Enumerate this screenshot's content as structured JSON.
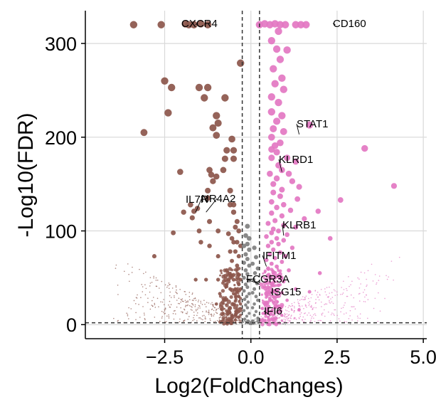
{
  "chart_data": {
    "type": "scatter",
    "title": "",
    "xlabel": "Log2(FoldChanges)",
    "ylabel": "-Log10(FDR)",
    "xlim": [
      -4.8,
      5.1
    ],
    "ylim": [
      -15,
      335
    ],
    "x_ticks": [
      -2.5,
      0.0,
      2.5,
      5.0
    ],
    "x_tick_labels": [
      "−2.5",
      "0.0",
      "2.5",
      "5.0"
    ],
    "y_ticks": [
      0,
      100,
      200,
      300
    ],
    "y_tick_labels": [
      "0",
      "100",
      "200",
      "300"
    ],
    "grid": true,
    "thresholds": {
      "log2fc": [
        -0.25,
        0.25
      ],
      "fdr_line": 2
    },
    "colors": {
      "down": "#8c564b",
      "up": "#e377c2",
      "ns": "#7f7f7f",
      "grid": "#d9d9d9",
      "threshold": "#333333"
    },
    "series": [
      {
        "key": "down",
        "points": [
          [
            -3.4,
            320
          ],
          [
            -2.6,
            320
          ],
          [
            -1.9,
            321
          ],
          [
            -1.8,
            320
          ],
          [
            -1.65,
            320
          ],
          [
            -1.45,
            321
          ],
          [
            -1.25,
            320
          ],
          [
            -0.3,
            279
          ],
          [
            -2.5,
            260
          ],
          [
            -2.3,
            253
          ],
          [
            -1.5,
            253
          ],
          [
            -1.25,
            253
          ],
          [
            -1.35,
            242
          ],
          [
            -0.75,
            242
          ],
          [
            -2.4,
            226
          ],
          [
            -1.0,
            223
          ],
          [
            -0.95,
            215
          ],
          [
            -3.1,
            205
          ],
          [
            -1.1,
            210
          ],
          [
            -1.0,
            202
          ],
          [
            -0.55,
            198
          ],
          [
            -0.7,
            186
          ],
          [
            -0.5,
            186
          ],
          [
            -0.5,
            177
          ],
          [
            -0.75,
            177
          ],
          [
            -0.8,
            165
          ],
          [
            -1.2,
            165
          ],
          [
            -2.05,
            163
          ],
          [
            -1.15,
            160
          ],
          [
            -1.0,
            158
          ],
          [
            -1.1,
            153
          ],
          [
            -1.25,
            143
          ],
          [
            -0.6,
            143
          ],
          [
            -1.75,
            128
          ],
          [
            -1.55,
            124
          ],
          [
            -1.25,
            135
          ],
          [
            -0.6,
            128
          ],
          [
            -0.5,
            128
          ],
          [
            -1.65,
            121
          ],
          [
            -1.95,
            120
          ],
          [
            -0.5,
            120
          ],
          [
            -1.7,
            114
          ],
          [
            -1.2,
            110
          ],
          [
            -0.4,
            110
          ],
          [
            -0.45,
            104
          ],
          [
            -1.5,
            100
          ],
          [
            -0.95,
            100
          ],
          [
            -0.35,
            100
          ],
          [
            -2.25,
            98
          ],
          [
            -0.65,
            97
          ],
          [
            -0.55,
            92
          ],
          [
            -1.45,
            88
          ],
          [
            -0.5,
            88
          ],
          [
            -0.4,
            88
          ],
          [
            -1.2,
            84
          ],
          [
            -0.3,
            84
          ],
          [
            -0.6,
            78
          ],
          [
            -0.45,
            78
          ],
          [
            -2.8,
            73
          ],
          [
            -0.95,
            73
          ],
          [
            -0.35,
            73
          ],
          [
            -0.55,
            68
          ],
          [
            -0.4,
            63
          ],
          [
            -0.7,
            58
          ],
          [
            -0.5,
            53
          ],
          [
            -0.35,
            53
          ],
          [
            -1.6,
            48
          ],
          [
            -1.3,
            48
          ],
          [
            -0.95,
            48
          ],
          [
            -0.65,
            48
          ],
          [
            -0.5,
            48
          ],
          [
            -0.3,
            48
          ],
          [
            -0.7,
            43
          ],
          [
            -0.35,
            43
          ],
          [
            -0.6,
            38
          ],
          [
            -0.45,
            38
          ],
          [
            -0.3,
            38
          ],
          [
            -0.9,
            33
          ],
          [
            -0.5,
            33
          ],
          [
            -0.35,
            30
          ],
          [
            -0.7,
            27
          ],
          [
            -0.45,
            25
          ],
          [
            -1.0,
            22
          ],
          [
            -0.3,
            22
          ],
          [
            -0.6,
            18
          ],
          [
            -0.4,
            15
          ],
          [
            -0.8,
            12
          ],
          [
            -0.55,
            10
          ],
          [
            -0.35,
            8
          ],
          [
            -0.45,
            5
          ]
        ]
      },
      {
        "key": "up",
        "points": [
          [
            0.25,
            320
          ],
          [
            0.4,
            321
          ],
          [
            0.55,
            320
          ],
          [
            0.7,
            321
          ],
          [
            0.85,
            320
          ],
          [
            1.0,
            320
          ],
          [
            1.3,
            320
          ],
          [
            1.45,
            320
          ],
          [
            1.6,
            320
          ],
          [
            0.8,
            313
          ],
          [
            0.6,
            303
          ],
          [
            0.75,
            294
          ],
          [
            1.05,
            293
          ],
          [
            0.85,
            283
          ],
          [
            0.65,
            273
          ],
          [
            0.9,
            263
          ],
          [
            0.7,
            257
          ],
          [
            0.95,
            251
          ],
          [
            0.6,
            243
          ],
          [
            0.8,
            237
          ],
          [
            0.6,
            227
          ],
          [
            0.9,
            223
          ],
          [
            0.75,
            217
          ],
          [
            1.7,
            213
          ],
          [
            0.65,
            209
          ],
          [
            0.95,
            206
          ],
          [
            0.6,
            200
          ],
          [
            0.85,
            194
          ],
          [
            0.7,
            191
          ],
          [
            0.6,
            187
          ],
          [
            0.75,
            184
          ],
          [
            0.6,
            178
          ],
          [
            1.05,
            178
          ],
          [
            1.3,
            174
          ],
          [
            0.8,
            170
          ],
          [
            0.9,
            165
          ],
          [
            1.1,
            161
          ],
          [
            0.55,
            161
          ],
          [
            0.75,
            156
          ],
          [
            1.2,
            153
          ],
          [
            0.65,
            150
          ],
          [
            1.4,
            147
          ],
          [
            0.9,
            144
          ],
          [
            0.65,
            141
          ],
          [
            0.85,
            137
          ],
          [
            1.35,
            134
          ],
          [
            0.6,
            131
          ],
          [
            0.95,
            128
          ],
          [
            0.75,
            125
          ],
          [
            1.15,
            122
          ],
          [
            0.6,
            119
          ],
          [
            0.9,
            116
          ],
          [
            1.55,
            113
          ],
          [
            0.7,
            111
          ],
          [
            0.5,
            108
          ],
          [
            0.95,
            106
          ],
          [
            1.3,
            104
          ],
          [
            0.65,
            102
          ],
          [
            0.8,
            100
          ],
          [
            0.6,
            98
          ],
          [
            1.05,
            96
          ],
          [
            0.45,
            94
          ],
          [
            0.75,
            92
          ],
          [
            0.95,
            90
          ],
          [
            0.6,
            88
          ],
          [
            0.8,
            86
          ],
          [
            0.5,
            84
          ],
          [
            1.2,
            82
          ],
          [
            0.65,
            80
          ],
          [
            0.85,
            77
          ],
          [
            0.55,
            75
          ],
          [
            1.0,
            73
          ],
          [
            0.7,
            71
          ],
          [
            0.45,
            69
          ],
          [
            0.9,
            67
          ],
          [
            0.6,
            65
          ],
          [
            0.75,
            62
          ],
          [
            0.5,
            60
          ],
          [
            1.1,
            58
          ],
          [
            0.65,
            56
          ],
          [
            0.85,
            54
          ],
          [
            0.55,
            52
          ],
          [
            0.7,
            50
          ],
          [
            0.45,
            48
          ],
          [
            0.95,
            46
          ],
          [
            0.6,
            44
          ],
          [
            0.8,
            42
          ],
          [
            0.5,
            40
          ],
          [
            1.3,
            38
          ],
          [
            0.65,
            36
          ],
          [
            0.9,
            34
          ],
          [
            0.45,
            32
          ],
          [
            0.75,
            30
          ],
          [
            0.55,
            28
          ],
          [
            1.05,
            26
          ],
          [
            0.65,
            24
          ],
          [
            0.4,
            22
          ],
          [
            0.8,
            20
          ],
          [
            0.5,
            18
          ],
          [
            1.4,
            16
          ],
          [
            0.6,
            14
          ],
          [
            0.35,
            12
          ],
          [
            0.9,
            10
          ],
          [
            0.5,
            8
          ],
          [
            0.7,
            6
          ],
          [
            0.4,
            4
          ],
          [
            2.6,
            133
          ],
          [
            2.3,
            92
          ],
          [
            1.95,
            121
          ],
          [
            3.3,
            188
          ],
          [
            4.15,
            148
          ],
          [
            2.0,
            55
          ],
          [
            1.7,
            35
          ]
        ]
      },
      {
        "key": "ns",
        "points": [
          [
            -0.1,
            105
          ],
          [
            -0.15,
            95
          ],
          [
            -0.05,
            92
          ],
          [
            -0.1,
            86
          ],
          [
            -0.2,
            84
          ],
          [
            -0.05,
            80
          ],
          [
            -0.15,
            75
          ],
          [
            -0.1,
            70
          ],
          [
            -0.2,
            66
          ],
          [
            -0.05,
            63
          ],
          [
            -0.15,
            58
          ],
          [
            -0.1,
            54
          ],
          [
            -0.2,
            50
          ],
          [
            -0.05,
            47
          ],
          [
            -0.15,
            43
          ],
          [
            -0.1,
            40
          ],
          [
            -0.2,
            36
          ],
          [
            -0.05,
            33
          ],
          [
            -0.12,
            30
          ],
          [
            -0.18,
            27
          ],
          [
            -0.08,
            24
          ],
          [
            -0.15,
            21
          ],
          [
            -0.1,
            18
          ],
          [
            -0.2,
            15
          ],
          [
            -0.05,
            12
          ],
          [
            -0.12,
            9
          ],
          [
            -0.18,
            6
          ],
          [
            -0.08,
            4
          ],
          [
            0.1,
            82
          ],
          [
            0.15,
            72
          ],
          [
            0.05,
            65
          ],
          [
            0.2,
            60
          ],
          [
            0.12,
            55
          ],
          [
            0.08,
            48
          ],
          [
            0.18,
            44
          ],
          [
            0.1,
            38
          ],
          [
            0.05,
            34
          ],
          [
            0.15,
            30
          ],
          [
            0.2,
            26
          ],
          [
            0.1,
            22
          ],
          [
            0.05,
            18
          ],
          [
            0.15,
            14
          ],
          [
            0.1,
            10
          ],
          [
            0.2,
            7
          ],
          [
            0.05,
            4
          ],
          [
            0.0,
            2
          ],
          [
            -0.02,
            1
          ],
          [
            0.02,
            1
          ]
        ]
      }
    ],
    "annotations": [
      {
        "label": "CXCR4",
        "x": -1.6,
        "y": 320
      },
      {
        "label": "CD160",
        "x": 2.45,
        "y": 320
      },
      {
        "label": "STAT1",
        "x": 1.4,
        "y": 203
      },
      {
        "label": "KLRD1",
        "x": 0.9,
        "y": 163
      },
      {
        "label": "IL7R",
        "x": -1.6,
        "y": 120
      },
      {
        "label": "NR4A2",
        "x": -1.3,
        "y": 120
      },
      {
        "label": "KLRB1",
        "x": 0.95,
        "y": 95
      },
      {
        "label": "IFITM1",
        "x": 0.45,
        "y": 62
      },
      {
        "label": "FCGR3A",
        "x": 0.25,
        "y": 43
      },
      {
        "label": "ISG15",
        "x": 0.6,
        "y": 33
      },
      {
        "label": "IFI6",
        "x": 0.55,
        "y": 10
      }
    ]
  }
}
